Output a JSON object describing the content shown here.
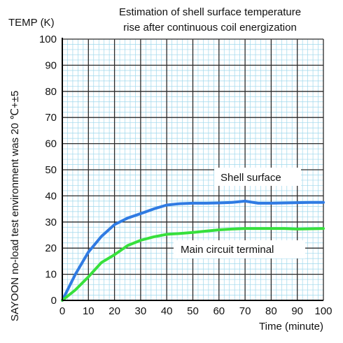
{
  "chart_data": {
    "type": "line",
    "title_line1": "Estimation of shell surface temperature",
    "title_line2": "rise after continuous coil energization",
    "ylabel": "TEMP (K)",
    "side_note": "SAYOON no-load test environment was 20 ℃+±5",
    "xlabel": "Time (minute)",
    "xlim": [
      0,
      100
    ],
    "ylim": [
      0,
      100
    ],
    "x_ticks": [
      "0",
      "10",
      "20",
      "30",
      "40",
      "50",
      "60",
      "70",
      "80",
      "90",
      "100"
    ],
    "y_ticks": [
      "0",
      "10",
      "20",
      "30",
      "40",
      "50",
      "60",
      "70",
      "80",
      "90",
      "100"
    ],
    "grid": true,
    "series": [
      {
        "name": "Shell surface",
        "color": "#2f7be3",
        "x": [
          0,
          5,
          10,
          15,
          20,
          25,
          30,
          35,
          40,
          45,
          50,
          55,
          60,
          65,
          70,
          75,
          80,
          85,
          90,
          95,
          100
        ],
        "y": [
          0,
          10,
          18.5,
          24.5,
          29,
          31.5,
          33.2,
          35,
          36.5,
          37,
          37.2,
          37.2,
          37.3,
          37.5,
          38,
          37.2,
          37.2,
          37.3,
          37.4,
          37.5,
          37.5
        ]
      },
      {
        "name": "Main circuit terminal",
        "color": "#37e03c",
        "x": [
          0,
          5,
          10,
          15,
          20,
          25,
          30,
          35,
          40,
          45,
          50,
          55,
          60,
          65,
          70,
          75,
          80,
          85,
          90,
          95,
          100
        ],
        "y": [
          0,
          4,
          9,
          14.5,
          17.5,
          21,
          23,
          24.3,
          25.3,
          25.6,
          26,
          26.5,
          27,
          27.3,
          27.5,
          27.5,
          27.5,
          27.5,
          27.3,
          27.4,
          27.5
        ]
      }
    ]
  }
}
